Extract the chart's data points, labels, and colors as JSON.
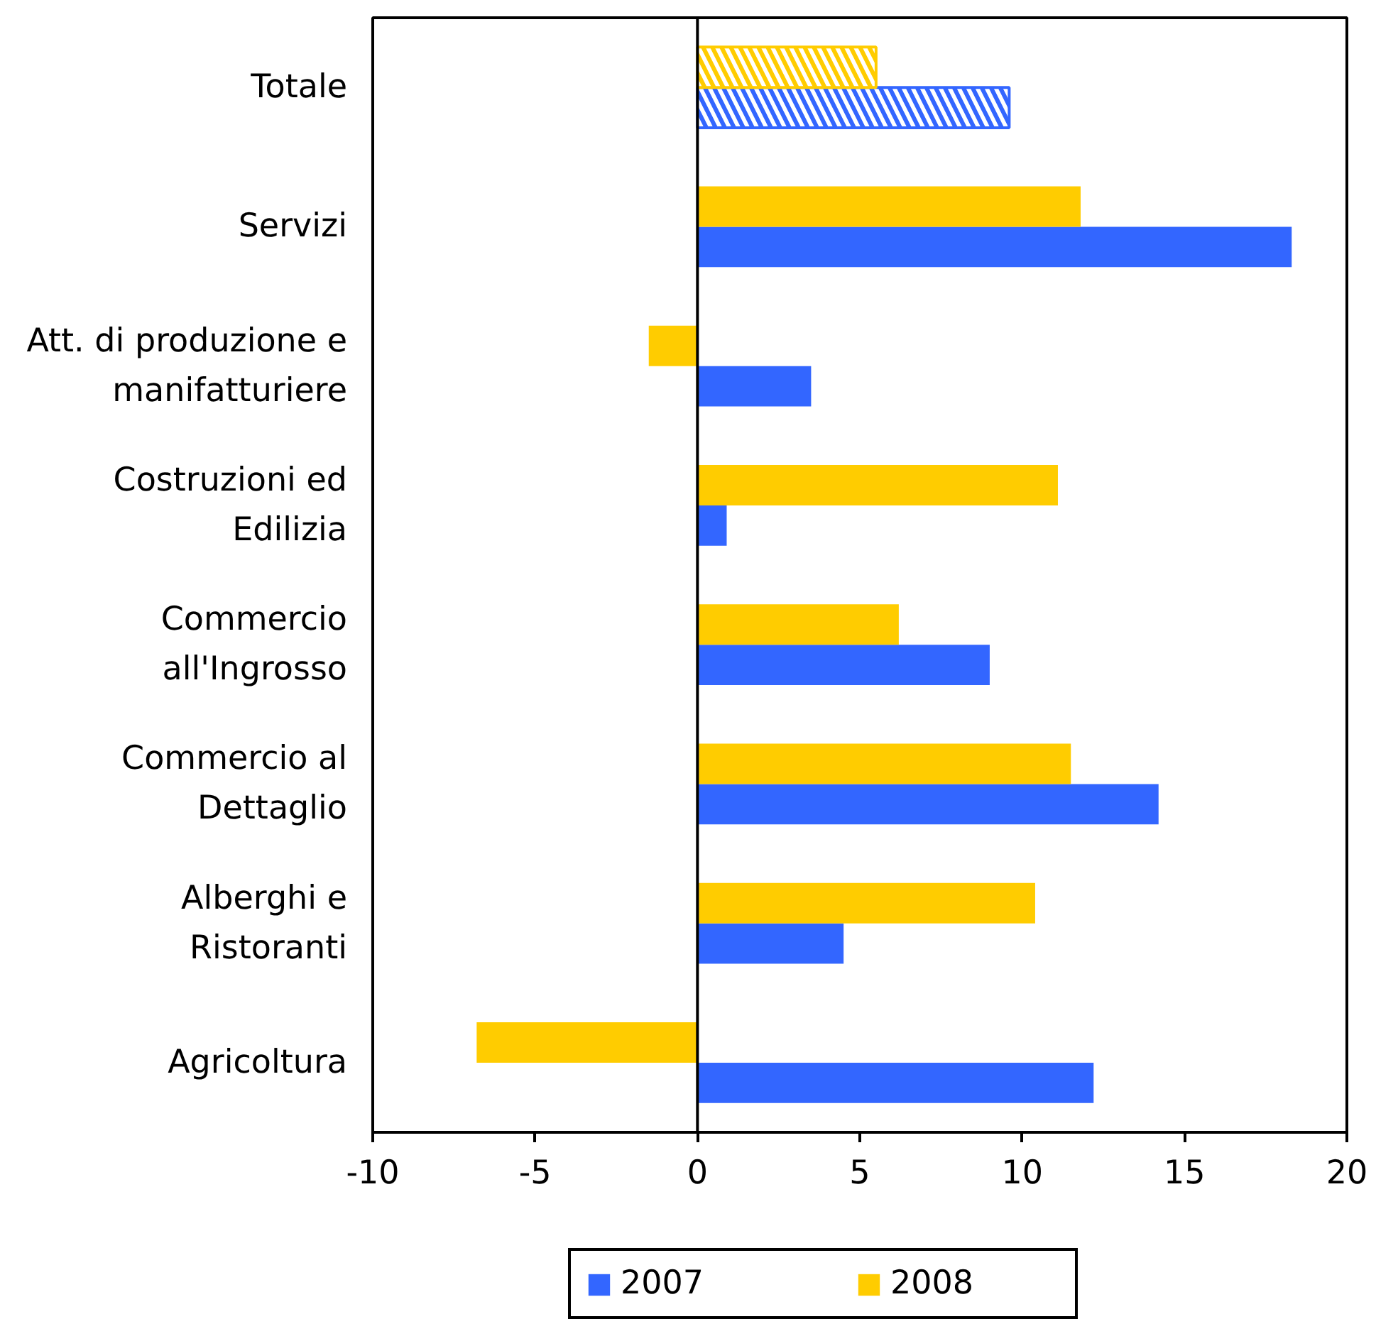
{
  "chart_data": {
    "type": "bar",
    "orientation": "horizontal",
    "categories": [
      "Totale",
      "Servizi",
      "Att. di produzione e manifatturiere",
      "Costruzioni ed Edilizia",
      "Commercio all'Ingrosso",
      "Commercio al Dettaglio",
      "Alberghi e Ristoranti",
      "Agricoltura"
    ],
    "series": [
      {
        "name": "2007",
        "color": "#3366ff",
        "values": [
          9.6,
          18.3,
          3.5,
          0.9,
          9.0,
          14.2,
          4.5,
          12.2
        ]
      },
      {
        "name": "2008",
        "color": "#ffcc00",
        "values": [
          5.5,
          11.8,
          -1.5,
          11.1,
          6.2,
          11.5,
          10.4,
          -6.8
        ]
      }
    ],
    "xlim": [
      -10,
      20
    ],
    "xticks": [
      -10,
      -5,
      0,
      5,
      10,
      15,
      20
    ],
    "ref_lines": [
      {
        "axis": "x",
        "value": 0,
        "color": "#000000"
      }
    ],
    "legend": "bottom"
  }
}
